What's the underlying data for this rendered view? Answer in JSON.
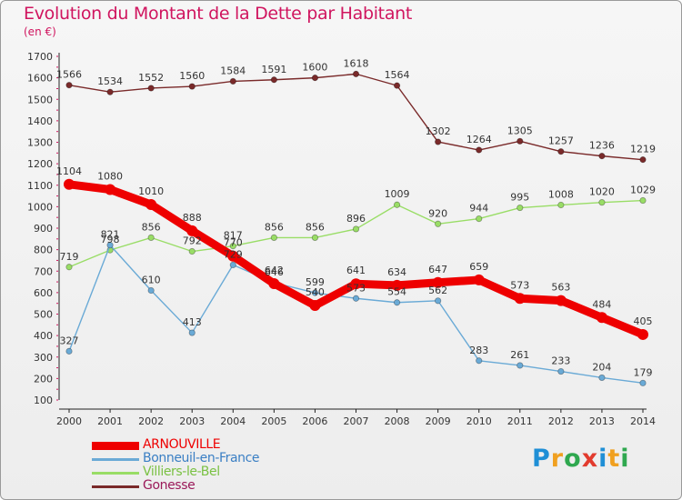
{
  "header": {
    "title": "Evolution du Montant de la Dette par Habitant",
    "unit": "(en €)"
  },
  "brand": {
    "name": "Proxiti",
    "letters": [
      "P",
      "r",
      "o",
      "x",
      "i",
      "t",
      "i"
    ]
  },
  "chart_data": {
    "type": "line",
    "title": "Evolution du Montant de la Dette par Habitant",
    "subtitle": "(en €)",
    "xlabel": "",
    "ylabel": "",
    "x": [
      "2000",
      "2001",
      "2002",
      "2003",
      "2004",
      "2005",
      "2006",
      "2007",
      "2008",
      "2009",
      "2010",
      "2011",
      "2012",
      "2013",
      "2014"
    ],
    "y_ticks": [
      100,
      200,
      300,
      400,
      500,
      600,
      700,
      800,
      900,
      1000,
      1100,
      1200,
      1300,
      1400,
      1500,
      1600,
      1700
    ],
    "ylim": [
      100,
      1700
    ],
    "grid": false,
    "legend_position": "bottom-left",
    "series": [
      {
        "name": "Gonesse",
        "color": "#7a2a2a",
        "values": [
          1566,
          1534,
          1552,
          1560,
          1584,
          1591,
          1600,
          1618,
          1564,
          1302,
          1264,
          1305,
          1257,
          1236,
          1219
        ]
      },
      {
        "name": "Villiers-le-Bel",
        "color": "#99dd66",
        "values": [
          719,
          798,
          856,
          792,
          817,
          856,
          856,
          896,
          1009,
          920,
          944,
          995,
          1008,
          1020,
          1029
        ]
      },
      {
        "name": "Bonneuil-en-France",
        "color": "#6aaad6",
        "values": [
          327,
          821,
          610,
          413,
          729,
          646,
          599,
          573,
          554,
          562,
          283,
          261,
          233,
          204,
          179
        ]
      },
      {
        "name": "ARNOUVILLE",
        "color": "#ee0000",
        "values": [
          1104,
          1080,
          1010,
          888,
          770,
          642,
          540,
          641,
          634,
          647,
          659,
          573,
          563,
          484,
          405
        ]
      }
    ],
    "legend": [
      {
        "name": "ARNOUVILLE",
        "color": "#ee0000"
      },
      {
        "name": "Bonneuil-en-France",
        "color": "#6aaad6"
      },
      {
        "name": "Villiers-le-Bel",
        "color": "#99dd66"
      },
      {
        "name": "Gonesse",
        "color": "#7a2a2a"
      }
    ]
  }
}
